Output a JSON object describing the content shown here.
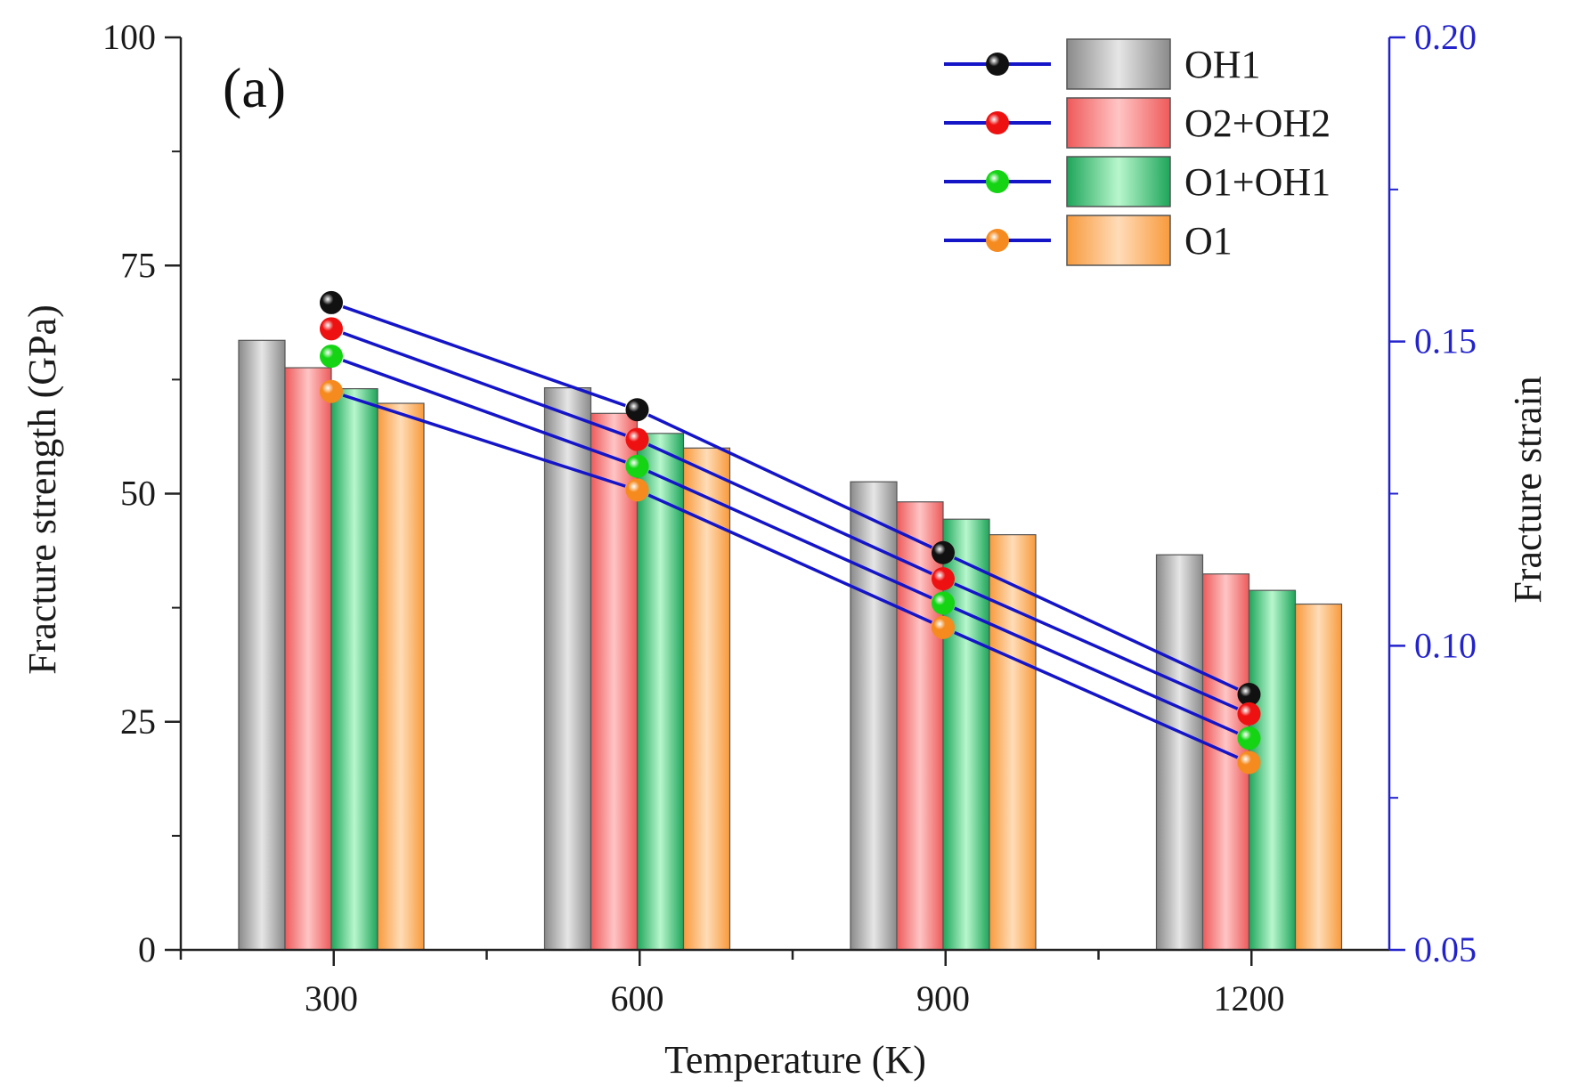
{
  "chart_data": {
    "type": "bar",
    "panel_label": "(a)",
    "categories": [
      "300",
      "600",
      "900",
      "1200"
    ],
    "xlabel": "Temperature (K)",
    "ylabel": "Fracture strength (GPa)",
    "ylim": [
      0,
      100
    ],
    "yticks": [
      "0",
      "25",
      "50",
      "75",
      "100"
    ],
    "y2label": "Fracture strain",
    "y2lim": [
      0.05,
      0.2
    ],
    "y2ticks": [
      "0.05",
      "0.10",
      "0.15",
      "0.20"
    ],
    "legend_position": "top-right",
    "grid": false,
    "series": [
      {
        "name": "OH1",
        "strength": [
          66.8,
          61.6,
          51.3,
          43.3
        ],
        "strain": [
          0.1564,
          0.1388,
          0.1153,
          0.092
        ],
        "bar_color": "#8a8a8a",
        "bar_light": "#e6e6e6",
        "marker_color": "#111111"
      },
      {
        "name": "O2+OH2",
        "strength": [
          63.8,
          58.8,
          49.1,
          41.2
        ],
        "strain": [
          0.1521,
          0.1339,
          0.111,
          0.0888
        ],
        "bar_color": "#ee5a5a",
        "bar_light": "#ffc5c5",
        "marker_color": "#ee1111"
      },
      {
        "name": "O1+OH1",
        "strength": [
          61.5,
          56.6,
          47.2,
          39.4
        ],
        "strain": [
          0.1476,
          0.1295,
          0.107,
          0.0848
        ],
        "bar_color": "#1ea55a",
        "bar_light": "#b8f7cd",
        "marker_color": "#14d414"
      },
      {
        "name": "O1",
        "strength": [
          59.9,
          55.0,
          45.5,
          37.9
        ],
        "strain": [
          0.1418,
          0.1256,
          0.103,
          0.0808
        ],
        "bar_color": "#f89a3c",
        "bar_light": "#ffdcb8",
        "marker_color": "#f58a1f"
      }
    ],
    "strain_line_color": "#1515c8",
    "right_axis_color": "#2323cc"
  }
}
